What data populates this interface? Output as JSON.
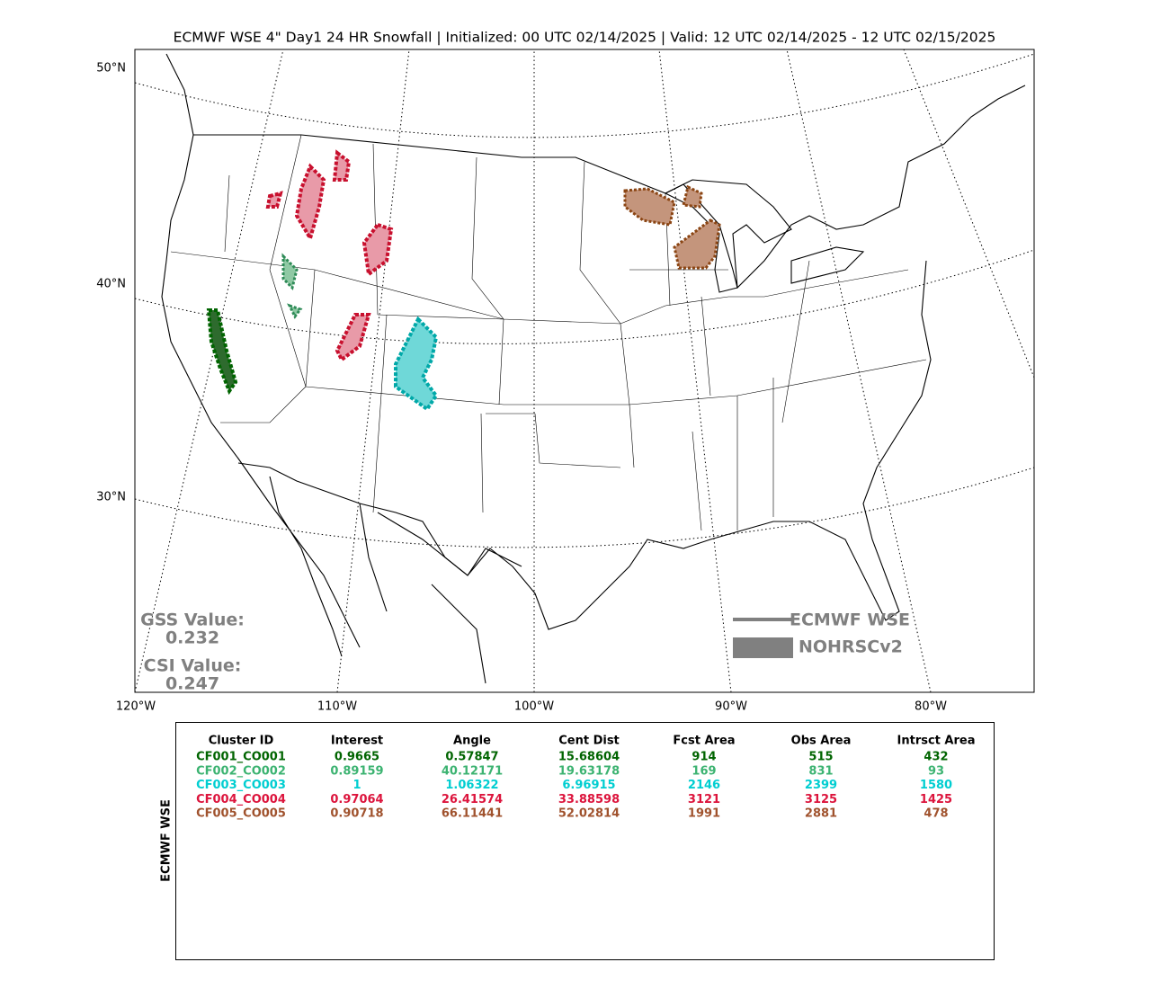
{
  "title": "ECMWF WSE 4\" Day1 24 HR Snowfall | Initialized: 00 UTC 02/14/2025 | Valid: 12 UTC 02/14/2025 - 12 UTC 02/15/2025",
  "lat_labels": [
    "50°N",
    "40°N",
    "30°N"
  ],
  "lon_labels": [
    "120°W",
    "110°W",
    "100°W",
    "90°W",
    "80°W"
  ],
  "scores": {
    "gss_label": "GSS Value:",
    "gss_value": "0.232",
    "csi_label": "CSI Value:",
    "csi_value": "0.247"
  },
  "legend": {
    "forecast": "ECMWF WSE",
    "observed": "NOHRSCv2"
  },
  "table": {
    "side_label": "ECMWF WSE",
    "headers": [
      "Cluster ID",
      "Interest",
      "Angle",
      "Cent Dist",
      "Fcst Area",
      "Obs Area",
      "Intrsct Area"
    ],
    "rows": [
      {
        "color": "#006400",
        "cells": [
          "CF001_CO001",
          "0.9665",
          "0.57847",
          "15.68604",
          "914",
          "515",
          "432"
        ]
      },
      {
        "color": "#3cb371",
        "cells": [
          "CF002_CO002",
          "0.89159",
          "40.12171",
          "19.63178",
          "169",
          "831",
          "93"
        ]
      },
      {
        "color": "#00ced1",
        "cells": [
          "CF003_CO003",
          "1",
          "1.06322",
          "6.96915",
          "2146",
          "2399",
          "1580"
        ]
      },
      {
        "color": "#dc143c",
        "cells": [
          "CF004_CO004",
          "0.97064",
          "26.41574",
          "33.88598",
          "3121",
          "3125",
          "1425"
        ]
      },
      {
        "color": "#a0522d",
        "cells": [
          "CF005_CO005",
          "0.90718",
          "66.11441",
          "52.02814",
          "1991",
          "2881",
          "478"
        ]
      }
    ]
  }
}
